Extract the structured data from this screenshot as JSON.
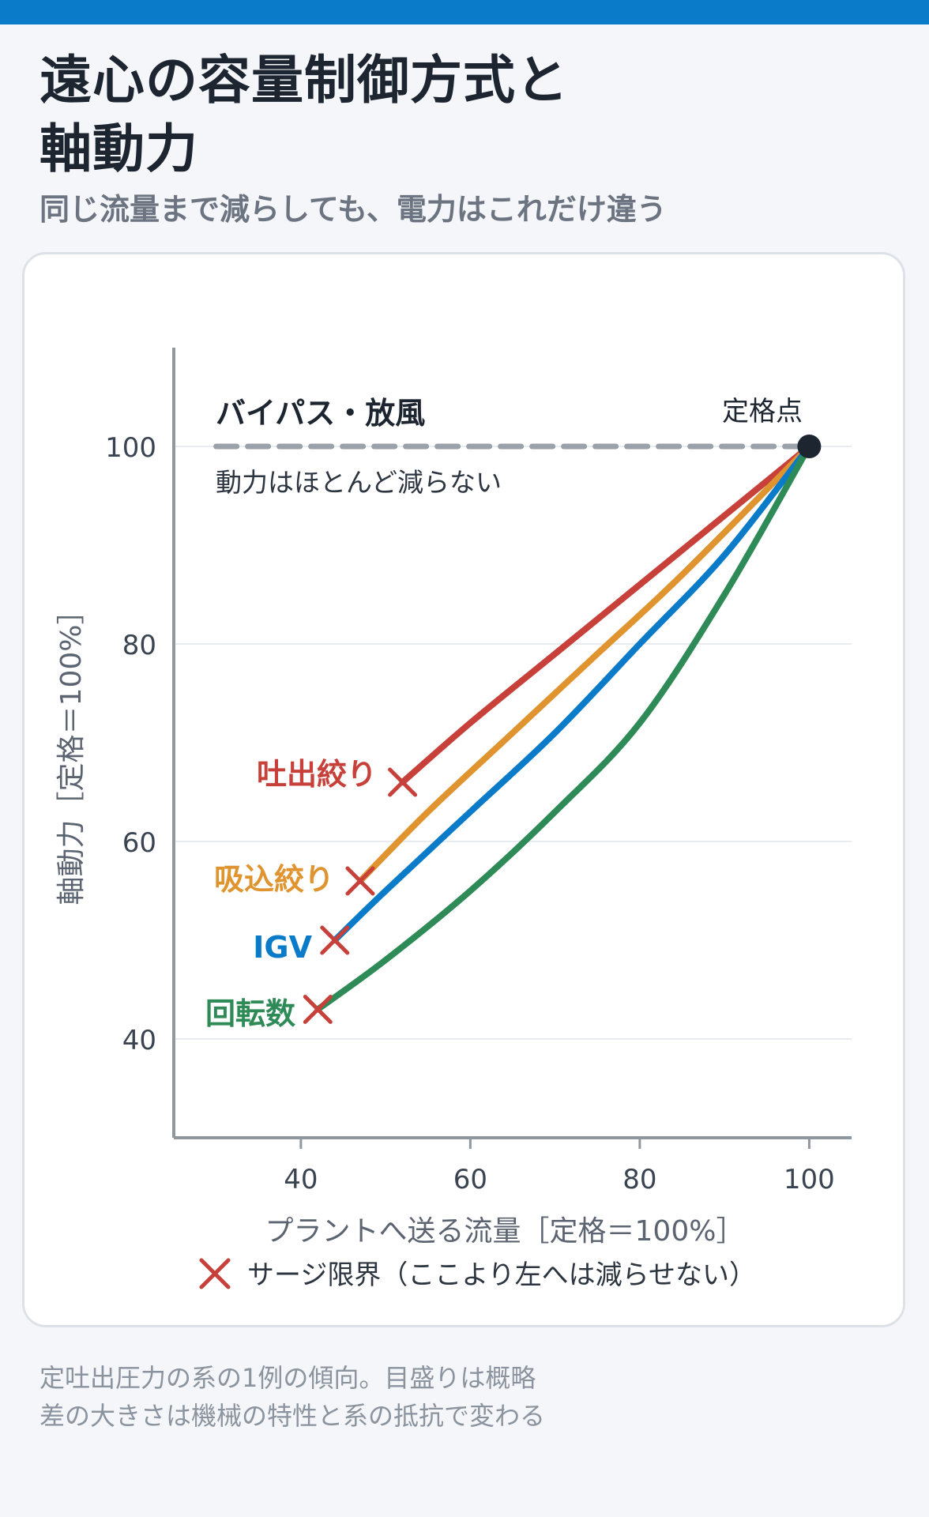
{
  "page": {
    "title_line1": "遠心の容量制御方式と",
    "title_line2": "軸動力",
    "subtitle": "同じ流量まで減らしても、電力はこれだけ違う",
    "footnote_line1": "定吐出圧力の系の1例の傾向。目盛りは概略",
    "footnote_line2": "差の大きさは機械の特性と系の抵抗で変わる"
  },
  "colors": {
    "discharge": "#c8403a",
    "suction": "#e09430",
    "igv": "#0a7bc8",
    "speed": "#2e8b57",
    "bypass": "#9aa1a9",
    "surge": "#c8403a",
    "rated": "#1c2530"
  },
  "chart_data": {
    "type": "line",
    "xlabel": "プラントへ送る流量［定格＝100%］",
    "ylabel": "軸動力［定格＝100%］",
    "xlim": [
      25,
      105
    ],
    "ylim": [
      30,
      110
    ],
    "x_ticks": [
      40,
      60,
      80,
      100
    ],
    "y_ticks": [
      40,
      60,
      80,
      100
    ],
    "grid": "horizontal",
    "series": [
      {
        "key": "discharge",
        "name": "吐出絞り",
        "x": [
          52,
          60,
          70,
          80,
          90,
          100
        ],
        "y": [
          66,
          72,
          79,
          86,
          93,
          100
        ]
      },
      {
        "key": "suction",
        "name": "吸込絞り",
        "x": [
          47,
          55,
          65,
          75,
          85,
          100
        ],
        "y": [
          56,
          63,
          71,
          79,
          87,
          100
        ]
      },
      {
        "key": "igv",
        "name": "IGV",
        "x": [
          44,
          50,
          60,
          70,
          80,
          90,
          100
        ],
        "y": [
          50,
          55,
          63,
          71,
          80,
          89,
          100
        ]
      },
      {
        "key": "speed",
        "name": "回転数",
        "x": [
          42,
          50,
          60,
          70,
          80,
          90,
          100
        ],
        "y": [
          43,
          48,
          55,
          63,
          72,
          85,
          100
        ]
      }
    ],
    "bypass": {
      "name": "バイパス・放風",
      "note": "動力はほとんど減らない",
      "x": [
        30,
        100
      ],
      "y": [
        100,
        100
      ]
    },
    "surge_points": [
      {
        "series": "discharge",
        "x": 52,
        "y": 66
      },
      {
        "series": "suction",
        "x": 47,
        "y": 56
      },
      {
        "series": "igv",
        "x": 44,
        "y": 50
      },
      {
        "series": "speed",
        "x": 42,
        "y": 43
      }
    ],
    "rated_point": {
      "label": "定格点",
      "x": 100,
      "y": 100
    },
    "legend": {
      "surge_label": "サージ限界（ここより左へは減らせない）",
      "placement": "bottom"
    }
  }
}
